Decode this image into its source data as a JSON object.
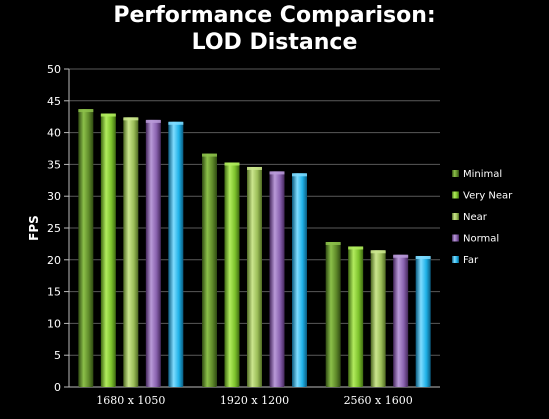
{
  "chart_data": {
    "type": "bar",
    "title_line1": "Performance Comparison:",
    "title_line2": "LOD Distance",
    "ylabel": "FPS",
    "xlabel": "",
    "ylim": [
      0,
      50
    ],
    "yticks": [
      0,
      5,
      10,
      15,
      20,
      25,
      30,
      35,
      40,
      45,
      50
    ],
    "grid": true,
    "legend_position": "right",
    "categories": [
      "1680 x 1050",
      "1920 x 1200",
      "2560 x 1600"
    ],
    "series": [
      {
        "name": "Minimal",
        "values": [
          43.7,
          36.7,
          22.8
        ],
        "color": "#5f8a2a",
        "light": "#8cc04a",
        "dark": "#2f4a12"
      },
      {
        "name": "Very Near",
        "values": [
          43.0,
          35.3,
          22.1
        ],
        "color": "#7dc22c",
        "light": "#b2ec5e",
        "dark": "#3f6a12"
      },
      {
        "name": "Near",
        "values": [
          42.4,
          34.6,
          21.5
        ],
        "color": "#9bbd58",
        "light": "#cbe68e",
        "dark": "#4f6a22"
      },
      {
        "name": "Normal",
        "values": [
          42.0,
          33.9,
          20.8
        ],
        "color": "#8a63b0",
        "light": "#b99ad8",
        "dark": "#46285e"
      },
      {
        "name": "Far",
        "values": [
          41.7,
          33.6,
          20.6
        ],
        "color": "#1fb2e8",
        "light": "#7fdcff",
        "dark": "#0a5a7e"
      }
    ]
  }
}
